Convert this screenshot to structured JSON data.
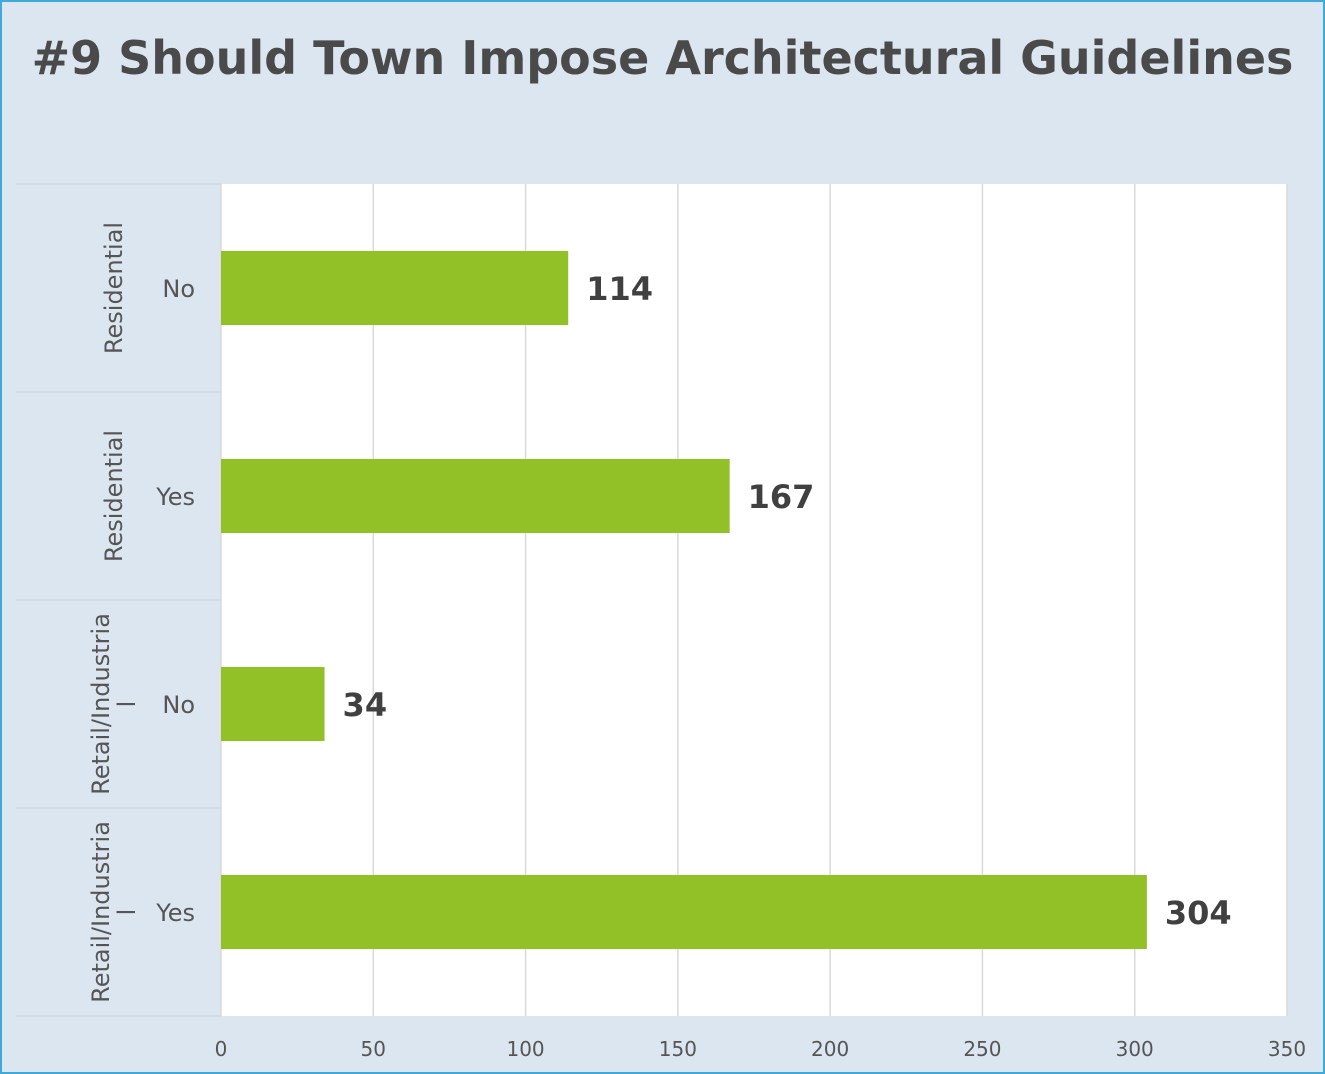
{
  "chart_data": {
    "type": "bar",
    "orientation": "horizontal",
    "title": "#9 Should Town Impose Architectural Guidelines",
    "categories": [
      {
        "group": "Residential",
        "label": "No"
      },
      {
        "group": "Residential",
        "label": "Yes"
      },
      {
        "group": "Retail/Industrial",
        "label": "No"
      },
      {
        "group": "Retail/Industrial",
        "label": "Yes"
      }
    ],
    "values": [
      114,
      167,
      34,
      304
    ],
    "data_labels": [
      "114",
      "167",
      "34",
      "304"
    ],
    "xlim": [
      0,
      350
    ],
    "x_ticks": [
      0,
      50,
      100,
      150,
      200,
      250,
      300,
      350
    ],
    "grid": true,
    "bar_color": "#92c027",
    "plot_background": "#ffffff",
    "chart_background": "#dce6f1",
    "border_color": "#3fa9dc",
    "group_label_lines": [
      [
        "Residential"
      ],
      [
        "Residential"
      ],
      [
        "Retail/Industria",
        "l"
      ],
      [
        "Retail/Industria",
        "l"
      ]
    ]
  }
}
